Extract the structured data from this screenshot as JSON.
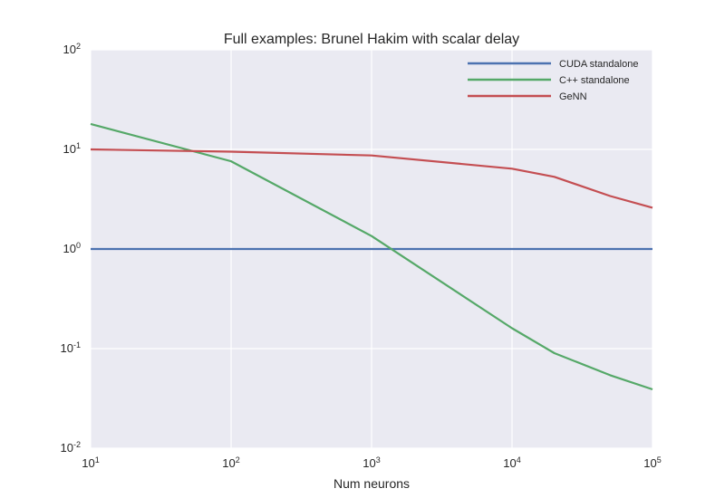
{
  "chart_data": {
    "type": "line",
    "title": "Full examples: Brunel Hakim with scalar delay",
    "xlabel": "Num neurons",
    "ylabel": "",
    "x_scale": "log",
    "y_scale": "log",
    "xlim": [
      10,
      100000
    ],
    "ylim": [
      0.01,
      100
    ],
    "x_ticks": [
      {
        "base": "10",
        "exp": "1",
        "value": 10
      },
      {
        "base": "10",
        "exp": "2",
        "value": 100
      },
      {
        "base": "10",
        "exp": "3",
        "value": 1000
      },
      {
        "base": "10",
        "exp": "4",
        "value": 10000
      },
      {
        "base": "10",
        "exp": "5",
        "value": 100000
      }
    ],
    "y_ticks": [
      {
        "base": "10",
        "exp": "-2",
        "value": 0.01
      },
      {
        "base": "10",
        "exp": "-1",
        "value": 0.1
      },
      {
        "base": "10",
        "exp": "0",
        "value": 1
      },
      {
        "base": "10",
        "exp": "1",
        "value": 10
      },
      {
        "base": "10",
        "exp": "2",
        "value": 100
      }
    ],
    "grid": true,
    "legend_position": "top-right",
    "series": [
      {
        "name": "CUDA standalone",
        "color": "#4c72b0",
        "x": [
          10,
          100,
          1000,
          10000,
          20000,
          50000,
          100000
        ],
        "y": [
          1,
          1,
          1,
          1,
          1,
          1,
          1
        ]
      },
      {
        "name": "C++ standalone",
        "color": "#55a868",
        "x": [
          10,
          100,
          1000,
          10000,
          20000,
          50000,
          100000
        ],
        "y": [
          18,
          7.6,
          1.35,
          0.16,
          0.09,
          0.054,
          0.039
        ]
      },
      {
        "name": "GeNN",
        "color": "#c44e52",
        "x": [
          10,
          100,
          1000,
          10000,
          20000,
          50000,
          100000
        ],
        "y": [
          10,
          9.5,
          8.7,
          6.4,
          5.3,
          3.4,
          2.6
        ]
      }
    ]
  }
}
